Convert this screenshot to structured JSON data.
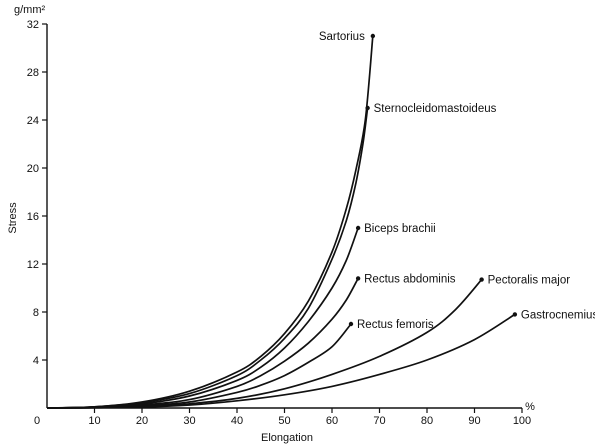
{
  "chart_data": {
    "type": "line",
    "title": "",
    "xlabel": "Elongation",
    "ylabel": "Stress",
    "x_unit": "%",
    "y_unit": "g/mm²",
    "xlim": [
      0,
      100
    ],
    "ylim": [
      0,
      32
    ],
    "x_ticks": [
      0,
      10,
      20,
      30,
      40,
      50,
      60,
      70,
      80,
      90,
      100
    ],
    "y_ticks": [
      4,
      8,
      12,
      16,
      20,
      24,
      28,
      32
    ],
    "origin_label": "0",
    "grid": false,
    "series": [
      {
        "name": "Sartorius",
        "label_anchor": "end",
        "points": [
          [
            0,
            0
          ],
          [
            10,
            0.1
          ],
          [
            20,
            0.5
          ],
          [
            30,
            1.4
          ],
          [
            40,
            3.0
          ],
          [
            45,
            4.3
          ],
          [
            50,
            6.2
          ],
          [
            55,
            8.9
          ],
          [
            60,
            13.0
          ],
          [
            63,
            16.6
          ],
          [
            65,
            19.8
          ],
          [
            67,
            24.0
          ],
          [
            68.6,
            31.0
          ]
        ]
      },
      {
        "name": "Sternocleidomastoideus",
        "label_anchor": "start",
        "points": [
          [
            0,
            0
          ],
          [
            10,
            0.1
          ],
          [
            20,
            0.45
          ],
          [
            30,
            1.2
          ],
          [
            40,
            2.7
          ],
          [
            45,
            4.0
          ],
          [
            50,
            5.8
          ],
          [
            55,
            8.3
          ],
          [
            60,
            12.4
          ],
          [
            63,
            15.6
          ],
          [
            65,
            18.7
          ],
          [
            66.5,
            22.0
          ],
          [
            67.5,
            25.0
          ]
        ]
      },
      {
        "name": "Biceps brachii",
        "label_anchor": "start",
        "points": [
          [
            0,
            0
          ],
          [
            10,
            0.08
          ],
          [
            20,
            0.35
          ],
          [
            30,
            1.0
          ],
          [
            40,
            2.3
          ],
          [
            45,
            3.4
          ],
          [
            50,
            5.0
          ],
          [
            55,
            7.2
          ],
          [
            60,
            10.0
          ],
          [
            63,
            12.3
          ],
          [
            65.5,
            15.0
          ]
        ]
      },
      {
        "name": "Rectus abdominis",
        "label_anchor": "start",
        "points": [
          [
            0,
            0
          ],
          [
            10,
            0.05
          ],
          [
            20,
            0.25
          ],
          [
            30,
            0.7
          ],
          [
            40,
            1.8
          ],
          [
            45,
            2.7
          ],
          [
            50,
            3.9
          ],
          [
            55,
            5.4
          ],
          [
            60,
            7.4
          ],
          [
            63,
            9.0
          ],
          [
            65.5,
            10.8
          ]
        ]
      },
      {
        "name": "Rectus femoris",
        "label_anchor": "start",
        "points": [
          [
            0,
            0
          ],
          [
            10,
            0.04
          ],
          [
            20,
            0.18
          ],
          [
            30,
            0.5
          ],
          [
            40,
            1.3
          ],
          [
            45,
            1.9
          ],
          [
            50,
            2.7
          ],
          [
            55,
            3.8
          ],
          [
            60,
            5.1
          ],
          [
            64,
            7.0
          ]
        ]
      },
      {
        "name": "Pectoralis major",
        "label_anchor": "start",
        "points": [
          [
            0,
            0
          ],
          [
            10,
            0.03
          ],
          [
            20,
            0.12
          ],
          [
            30,
            0.35
          ],
          [
            40,
            0.8
          ],
          [
            50,
            1.6
          ],
          [
            60,
            2.8
          ],
          [
            70,
            4.3
          ],
          [
            80,
            6.3
          ],
          [
            86,
            8.2
          ],
          [
            91.5,
            10.7
          ]
        ]
      },
      {
        "name": "Gastrocnemius",
        "label_anchor": "start",
        "points": [
          [
            0,
            0
          ],
          [
            10,
            0.02
          ],
          [
            20,
            0.08
          ],
          [
            30,
            0.25
          ],
          [
            40,
            0.6
          ],
          [
            50,
            1.1
          ],
          [
            60,
            1.8
          ],
          [
            70,
            2.8
          ],
          [
            80,
            4.0
          ],
          [
            90,
            5.7
          ],
          [
            98.5,
            7.8
          ]
        ]
      }
    ]
  }
}
